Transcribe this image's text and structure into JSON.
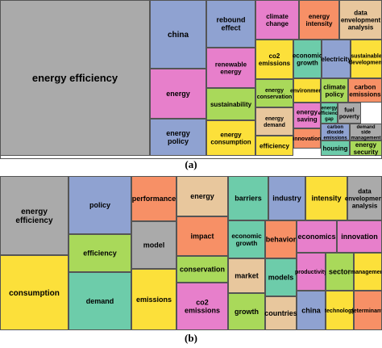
{
  "colors": {
    "gray": "#aaaaaa",
    "blue": "#8fa2d1",
    "pink": "#e77fcb",
    "yellow": "#fce03a",
    "lime": "#a9d95a",
    "orange": "#f79066",
    "tan": "#e8c79d",
    "teal": "#6dccaa",
    "border": "#555555"
  },
  "chart_data": [
    {
      "type": "treemap",
      "caption": "(a)",
      "cells": [
        {
          "label": "energy efficiency",
          "color": "gray"
        },
        {
          "label": "china",
          "color": "blue"
        },
        {
          "label": "rebound effect",
          "color": "blue"
        },
        {
          "label": "climate change",
          "color": "pink"
        },
        {
          "label": "energy intensity",
          "color": "orange"
        },
        {
          "label": "data envelopment analysis",
          "color": "tan"
        },
        {
          "label": "energy",
          "color": "pink"
        },
        {
          "label": "renewable energy",
          "color": "pink"
        },
        {
          "label": "co2 emissions",
          "color": "yellow"
        },
        {
          "label": "economic growth",
          "color": "teal"
        },
        {
          "label": "electricity",
          "color": "blue"
        },
        {
          "label": "sustainable development",
          "color": "yellow"
        },
        {
          "label": "energy policy",
          "color": "blue"
        },
        {
          "label": "sustainability",
          "color": "lime"
        },
        {
          "label": "energy conservation",
          "color": "lime"
        },
        {
          "label": "environment",
          "color": "yellow"
        },
        {
          "label": "climate policy",
          "color": "lime"
        },
        {
          "label": "carbon emissions",
          "color": "orange"
        },
        {
          "label": "energy consumption",
          "color": "yellow"
        },
        {
          "label": "energy demand",
          "color": "tan"
        },
        {
          "label": "energy saving",
          "color": "pink"
        },
        {
          "label": "energy efficiency gap",
          "color": "teal"
        },
        {
          "label": "fuel poverty",
          "color": "gray"
        },
        {
          "label": "efficiency",
          "color": "yellow"
        },
        {
          "label": "innovation",
          "color": "orange"
        },
        {
          "label": "carbon dioxide emissions",
          "color": "blue"
        },
        {
          "label": "demand side management",
          "color": "gray"
        },
        {
          "label": "housing",
          "color": "teal"
        },
        {
          "label": "energy security",
          "color": "lime"
        }
      ]
    },
    {
      "type": "treemap",
      "caption": "(b)",
      "cells": [
        {
          "label": "energy efficiency",
          "color": "gray"
        },
        {
          "label": "consumption",
          "color": "yellow"
        },
        {
          "label": "policy",
          "color": "blue"
        },
        {
          "label": "efficiency",
          "color": "lime"
        },
        {
          "label": "demand",
          "color": "teal"
        },
        {
          "label": "performance",
          "color": "orange"
        },
        {
          "label": "model",
          "color": "gray"
        },
        {
          "label": "emissions",
          "color": "yellow"
        },
        {
          "label": "energy",
          "color": "tan"
        },
        {
          "label": "impact",
          "color": "orange"
        },
        {
          "label": "conservation",
          "color": "lime"
        },
        {
          "label": "co2 emissions",
          "color": "pink"
        },
        {
          "label": "barriers",
          "color": "teal"
        },
        {
          "label": "industry",
          "color": "blue"
        },
        {
          "label": "intensity",
          "color": "yellow"
        },
        {
          "label": "data envelopment analysis",
          "color": "gray"
        },
        {
          "label": "economic growth",
          "color": "teal"
        },
        {
          "label": "behavior",
          "color": "orange"
        },
        {
          "label": "economics",
          "color": "pink"
        },
        {
          "label": "innovation",
          "color": "pink"
        },
        {
          "label": "market",
          "color": "tan"
        },
        {
          "label": "models",
          "color": "teal"
        },
        {
          "label": "productivity",
          "color": "pink"
        },
        {
          "label": "sector",
          "color": "lime"
        },
        {
          "label": "management",
          "color": "yellow"
        },
        {
          "label": "growth",
          "color": "lime"
        },
        {
          "label": "countries",
          "color": "tan"
        },
        {
          "label": "china",
          "color": "blue"
        },
        {
          "label": "technology",
          "color": "yellow"
        },
        {
          "label": "determinants",
          "color": "orange"
        }
      ]
    }
  ]
}
